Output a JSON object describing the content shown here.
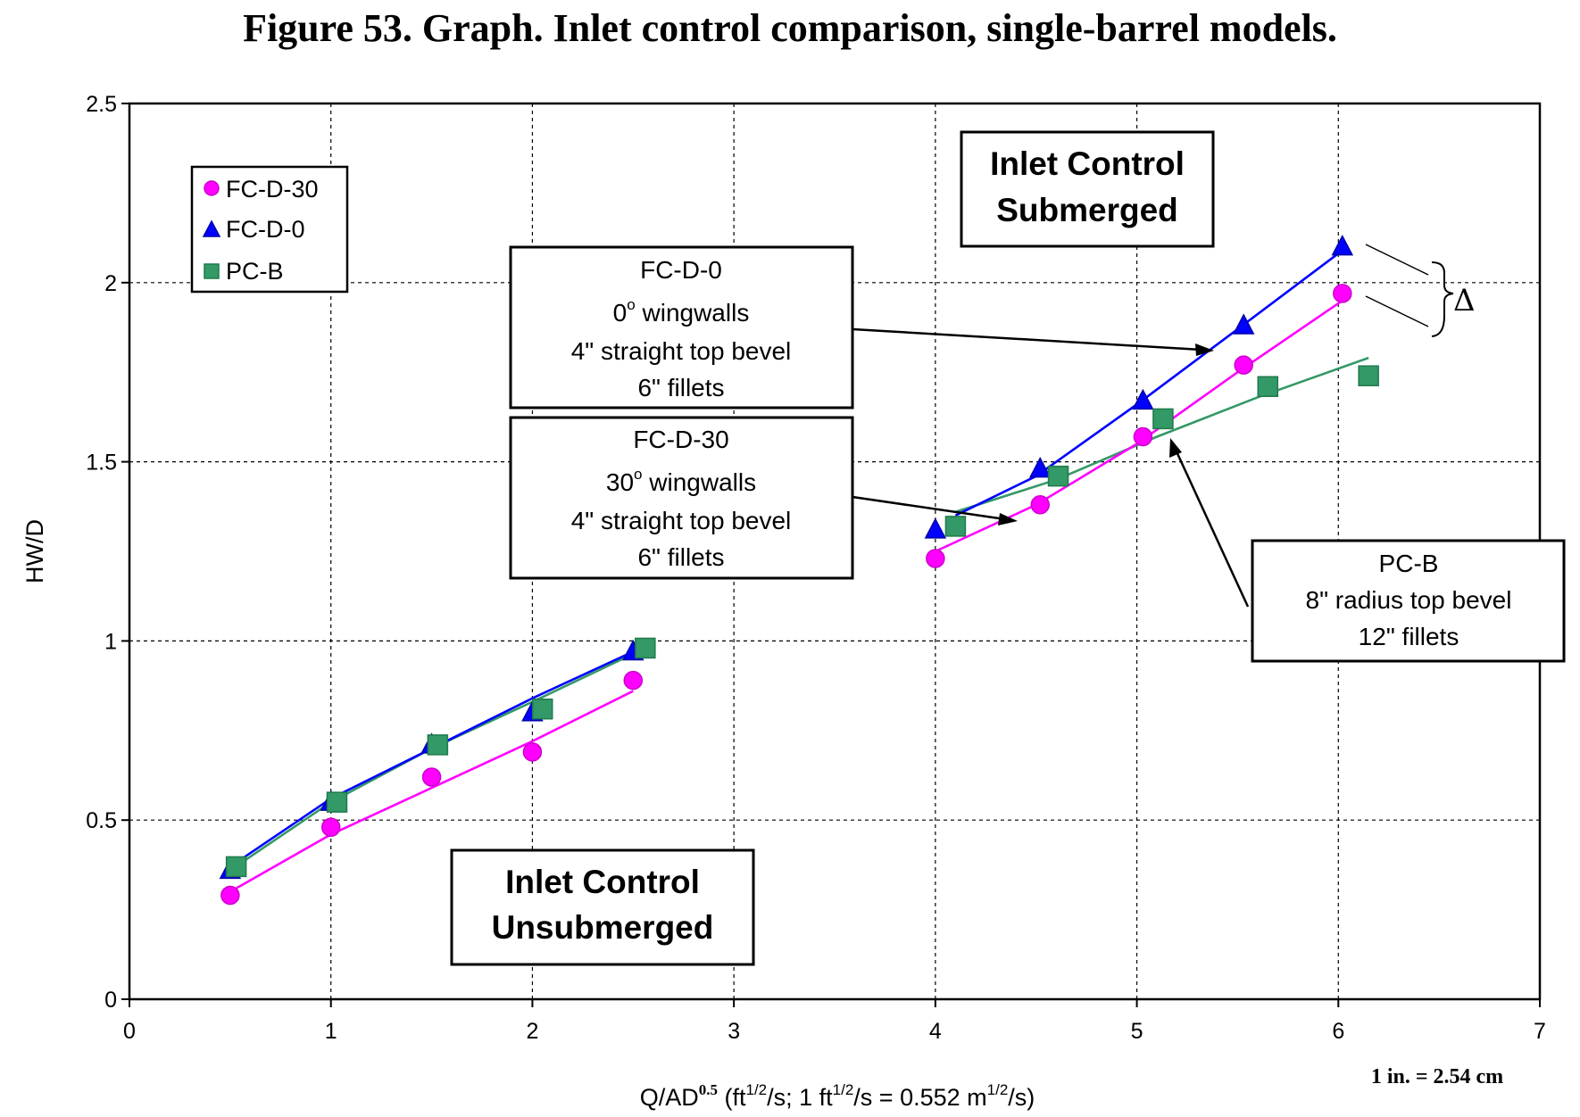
{
  "page_title": "Figure 53. Graph. Inlet control comparison, single-barrel models.",
  "chart_data": {
    "type": "scatter",
    "xlabel": {
      "main": "Q/AD",
      "sup": "0.5",
      "rest": " (ft",
      "sup2": "1/2",
      "rest2": "/s; 1 ft",
      "sup3": "1/2",
      "rest3": "/s = 0.552 m",
      "sup4": "1/2",
      "rest4": "/s)"
    },
    "ylabel": "HW/D",
    "xlim": [
      0,
      7
    ],
    "ylim": [
      0,
      2.5
    ],
    "xticks": [
      "0",
      "1",
      "2",
      "3",
      "4",
      "5",
      "6",
      "7"
    ],
    "yticks": [
      "0",
      "0.5",
      "1",
      "1.5",
      "2",
      "2.5"
    ],
    "grid": true,
    "legend_position": "top-left",
    "conversion_note": "1 in. = 2.54 cm",
    "series": [
      {
        "name": "FC-D-30",
        "marker": "circle",
        "color": "#ff00ff",
        "marker_edge": "#cc00cc",
        "points": [
          [
            0.5,
            0.29
          ],
          [
            1.0,
            0.48
          ],
          [
            1.5,
            0.62
          ],
          [
            2.0,
            0.69
          ],
          [
            2.5,
            0.89
          ],
          [
            4.0,
            1.23
          ],
          [
            4.52,
            1.38
          ],
          [
            5.03,
            1.57
          ],
          [
            5.53,
            1.77
          ],
          [
            6.02,
            1.97
          ]
        ],
        "fit_segments": [
          [
            [
              0.5,
              0.3
            ],
            [
              1.0,
              0.46
            ],
            [
              1.5,
              0.59
            ],
            [
              2.0,
              0.72
            ],
            [
              2.5,
              0.86
            ]
          ],
          [
            [
              4.0,
              1.25
            ],
            [
              4.5,
              1.38
            ],
            [
              5.0,
              1.55
            ],
            [
              5.5,
              1.75
            ],
            [
              6.02,
              1.95
            ]
          ]
        ]
      },
      {
        "name": "FC-D-0",
        "marker": "triangle",
        "color": "#0000ff",
        "marker_edge": "#0000aa",
        "points": [
          [
            0.5,
            0.36
          ],
          [
            1.0,
            0.55
          ],
          [
            1.5,
            0.71
          ],
          [
            2.0,
            0.8
          ],
          [
            2.5,
            0.97
          ],
          [
            4.0,
            1.31
          ],
          [
            4.52,
            1.48
          ],
          [
            5.03,
            1.67
          ],
          [
            5.53,
            1.88
          ],
          [
            6.02,
            2.1
          ]
        ],
        "fit_segments": [
          [
            [
              0.5,
              0.37
            ],
            [
              1.0,
              0.56
            ],
            [
              1.5,
              0.7
            ],
            [
              2.0,
              0.84
            ],
            [
              2.5,
              0.97
            ]
          ],
          [
            [
              4.1,
              1.35
            ],
            [
              4.5,
              1.46
            ],
            [
              5.0,
              1.66
            ],
            [
              5.5,
              1.87
            ],
            [
              6.02,
              2.09
            ]
          ]
        ]
      },
      {
        "name": "PC-B",
        "marker": "square",
        "color": "#339966",
        "marker_edge": "#207a4c",
        "points": [
          [
            0.53,
            0.37
          ],
          [
            1.03,
            0.55
          ],
          [
            1.53,
            0.71
          ],
          [
            2.05,
            0.81
          ],
          [
            2.56,
            0.98
          ],
          [
            4.1,
            1.32
          ],
          [
            4.61,
            1.46
          ],
          [
            5.13,
            1.62
          ],
          [
            5.65,
            1.71
          ],
          [
            6.15,
            1.74
          ]
        ],
        "fit_segments": [
          [
            [
              0.5,
              0.36
            ],
            [
              1.0,
              0.55
            ],
            [
              1.5,
              0.7
            ],
            [
              2.0,
              0.83
            ],
            [
              2.56,
              0.98
            ]
          ],
          [
            [
              4.1,
              1.36
            ],
            [
              4.6,
              1.45
            ],
            [
              5.1,
              1.57
            ],
            [
              5.6,
              1.68
            ],
            [
              6.15,
              1.79
            ]
          ]
        ]
      }
    ],
    "annotations": {
      "submerged": [
        "Inlet Control",
        "Submerged"
      ],
      "unsubmerged": [
        "Inlet Control",
        "Unsubmerged"
      ],
      "fcd0_box": {
        "title": "FC-D-0",
        "deg": "0",
        "deg_sup": "o",
        "deg_rest": " wingwalls",
        "l3": "4\" straight top bevel",
        "l4": "6\" fillets"
      },
      "fcd30_box": {
        "title": "FC-D-30",
        "deg": "30",
        "deg_sup": "o",
        "deg_rest": " wingwalls",
        "l3": "4\" straight top bevel",
        "l4": "6\" fillets"
      },
      "pcb_box": {
        "l1": "PC-B",
        "l2": "8\" radius top bevel",
        "l3": "12\" fillets"
      },
      "delta": "Δ"
    }
  }
}
